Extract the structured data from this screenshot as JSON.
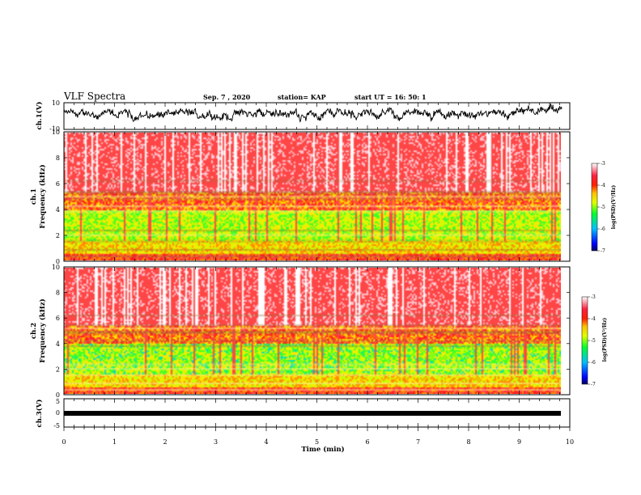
{
  "header": {
    "title": "VLF Spectra",
    "date": "Sep. 7 , 2020",
    "station": "station= KAP",
    "start": "start UT =   16: 50: 1"
  },
  "chart_data": [
    {
      "id": "ch1-waveform",
      "type": "line",
      "ylabel": "ch.1(V)",
      "ylim": [
        -10,
        10
      ],
      "y_ticks": [
        "10",
        "-10"
      ],
      "xlim": [
        0,
        10
      ],
      "color": "#000000"
    },
    {
      "id": "ch1-spectrogram",
      "type": "heatmap",
      "ylabel_top": "ch.1",
      "ylabel": "Frequency (kHz)",
      "ylim": [
        0,
        10
      ],
      "y_ticks": [
        "0",
        "2",
        "4",
        "6",
        "8",
        "10"
      ],
      "xlim": [
        0,
        9.85
      ],
      "colorbar": {
        "label": "log(PSD)(V²/Hz)",
        "range": [
          -7,
          -3
        ],
        "ticks": [
          "-3",
          "-4",
          "-5",
          "-6",
          "-7"
        ]
      }
    },
    {
      "id": "ch2-spectrogram",
      "type": "heatmap",
      "ylabel_top": "ch.2",
      "ylabel": "Frequency (kHz)",
      "ylim": [
        0,
        10
      ],
      "y_ticks": [
        "0",
        "2",
        "4",
        "6",
        "8",
        "10"
      ],
      "xlim": [
        0,
        9.85
      ],
      "colorbar": {
        "label": "log(PSD)(V²/Hz)",
        "range": [
          -7,
          -3
        ],
        "ticks": [
          "-3",
          "-4",
          "-5",
          "-6",
          "-7"
        ]
      }
    },
    {
      "id": "ch3-waveform",
      "type": "line",
      "ylabel": "ch.3(V)",
      "ylim": [
        -5,
        5
      ],
      "y_ticks": [
        "5",
        "0",
        "-5"
      ],
      "xlim": [
        0,
        10
      ],
      "color": "#000000"
    }
  ],
  "x_axis": {
    "label": "Time (min)",
    "range": [
      0,
      10
    ],
    "ticks": [
      "0",
      "1",
      "2",
      "3",
      "4",
      "5",
      "6",
      "7",
      "8",
      "9",
      "10"
    ]
  }
}
